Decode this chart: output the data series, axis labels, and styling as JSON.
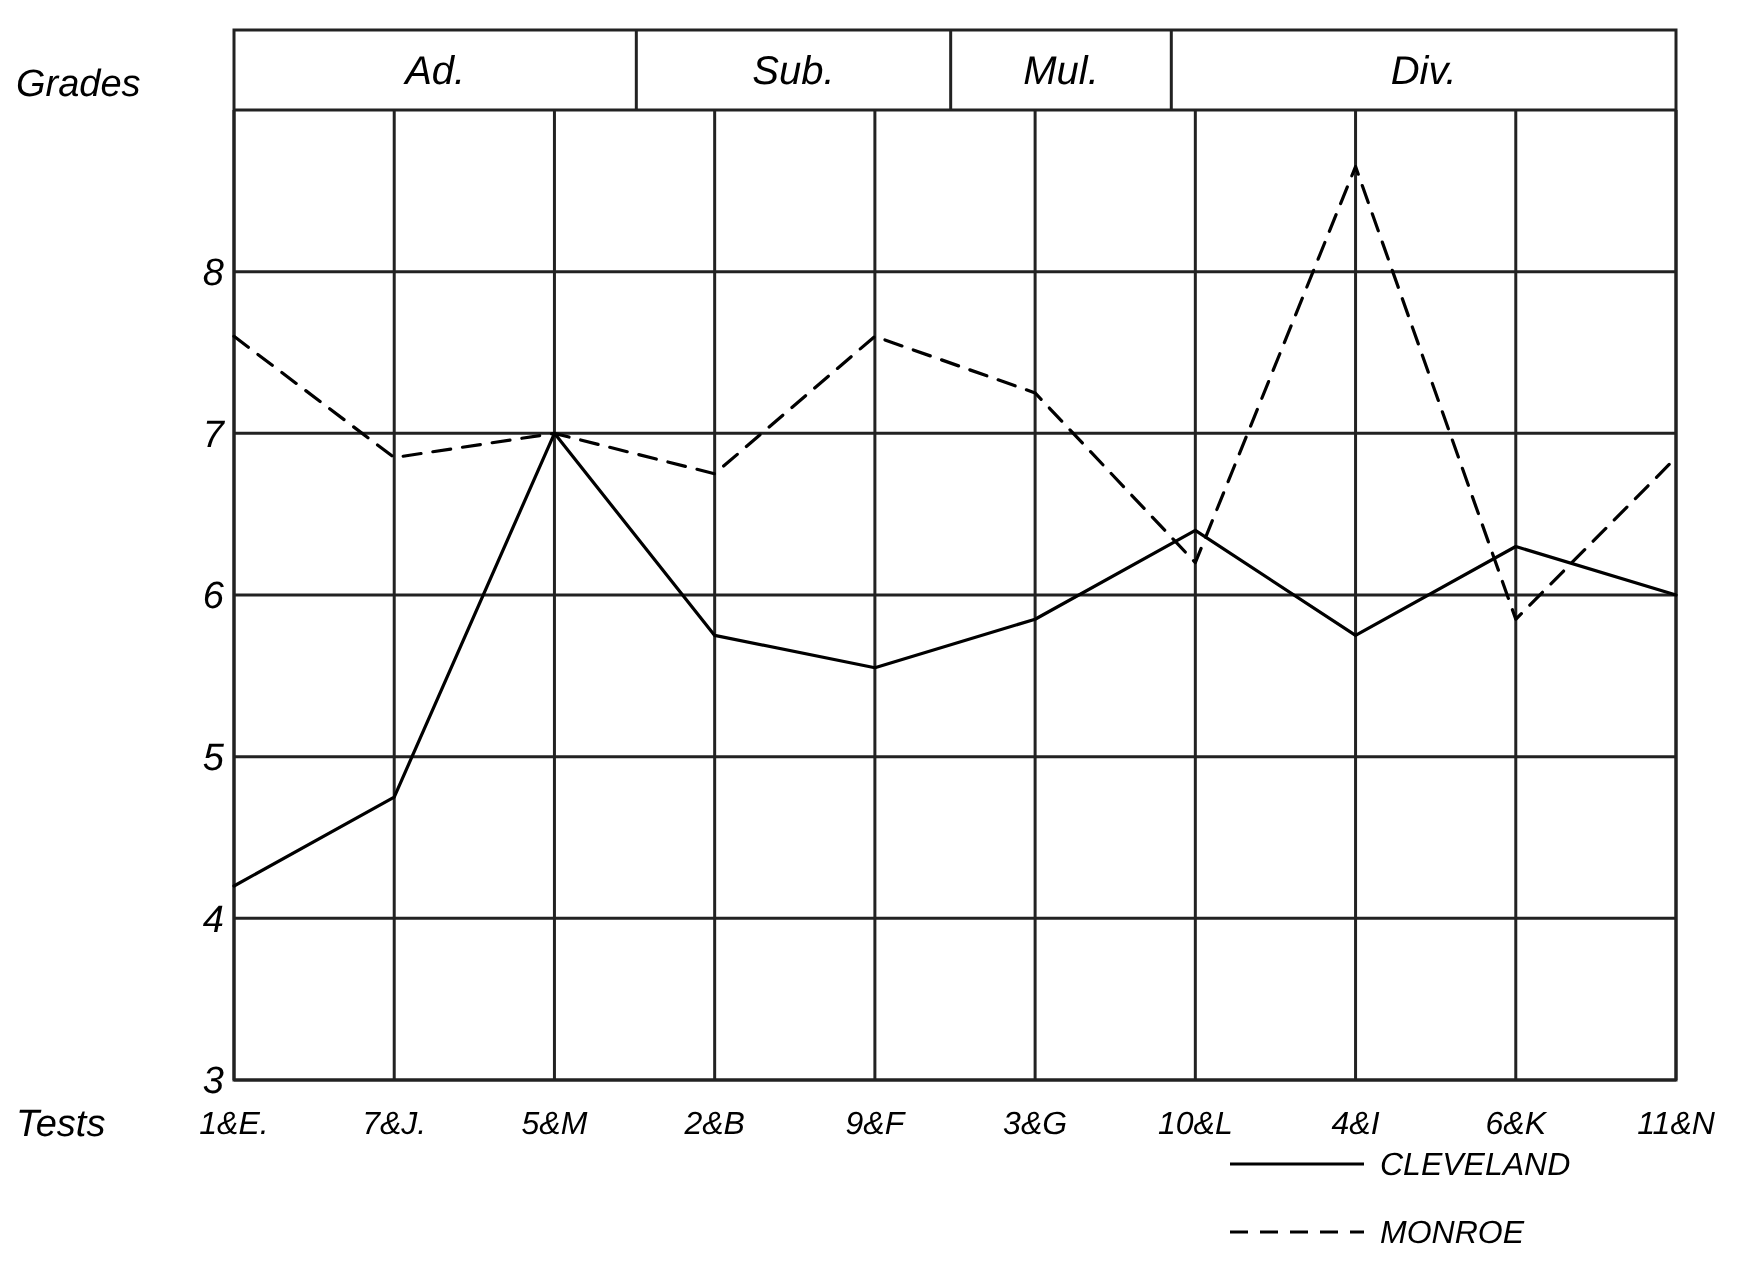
{
  "chart_data": {
    "type": "line",
    "xlabel": "Tests",
    "ylabel": "Grades",
    "categories": [
      "1&E.",
      "7&J.",
      "5&M",
      "2&B",
      "9&F",
      "3&G",
      "10&L",
      "4&I",
      "6&K",
      "11&N"
    ],
    "series": [
      {
        "name": "CLEVELAND",
        "color": "#000000",
        "line_style": "solid",
        "values": [
          4.2,
          4.75,
          7.0,
          5.75,
          5.55,
          5.85,
          6.4,
          5.75,
          6.3,
          6.0
        ]
      },
      {
        "name": "MONROE",
        "color": "#000000",
        "line_style": "dashed",
        "values": [
          7.6,
          6.85,
          7.0,
          6.75,
          7.6,
          7.25,
          6.2,
          8.65,
          5.85,
          6.85
        ]
      }
    ],
    "annotations": [
      "Ad.",
      "Sub.",
      "Mul.",
      "Div."
    ],
    "ylim": [
      3,
      9
    ],
    "yticks": [
      3,
      4,
      5,
      6,
      7,
      8
    ],
    "grid": true,
    "legend": "bottom right",
    "marker": "none"
  }
}
